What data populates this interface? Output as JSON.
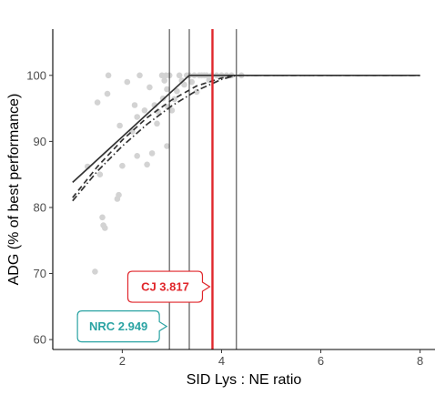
{
  "chart_data": {
    "type": "scatter",
    "title": "",
    "xlabel": "SID Lys : NE ratio",
    "ylabel": "ADG (% of best performance)",
    "xlim": [
      0.6,
      8.3
    ],
    "ylim": [
      58.5,
      107
    ],
    "x_ticks": [
      2,
      4,
      6,
      8
    ],
    "y_ticks": [
      60,
      70,
      80,
      90,
      100
    ],
    "grid": false,
    "colors": {
      "points": "#d3d3d3",
      "lines": "#333333",
      "cj": "#e0262b",
      "nrc": "#2aa3a3",
      "vlines": "#222222"
    },
    "points": [
      [
        1.3,
        86.2
      ],
      [
        1.45,
        70.3
      ],
      [
        1.5,
        95.9
      ],
      [
        1.55,
        85.0
      ],
      [
        1.6,
        78.5
      ],
      [
        1.62,
        77.3
      ],
      [
        1.65,
        76.9
      ],
      [
        1.7,
        97.2
      ],
      [
        1.72,
        100.0
      ],
      [
        1.9,
        81.3
      ],
      [
        1.93,
        81.9
      ],
      [
        1.95,
        92.4
      ],
      [
        2.0,
        86.3
      ],
      [
        2.1,
        99.0
      ],
      [
        2.2,
        91.5
      ],
      [
        2.25,
        95.5
      ],
      [
        2.3,
        87.8
      ],
      [
        2.3,
        93.7
      ],
      [
        2.35,
        100.0
      ],
      [
        2.45,
        94.7
      ],
      [
        2.5,
        86.5
      ],
      [
        2.55,
        98.2
      ],
      [
        2.6,
        88.2
      ],
      [
        2.65,
        95.5
      ],
      [
        2.7,
        92.7
      ],
      [
        2.72,
        94.5
      ],
      [
        2.8,
        100.0
      ],
      [
        2.82,
        96.5
      ],
      [
        2.85,
        99.2
      ],
      [
        2.88,
        100.0
      ],
      [
        2.9,
        89.3
      ],
      [
        2.9,
        97.9
      ],
      [
        2.92,
        95.2
      ],
      [
        2.95,
        100.0
      ],
      [
        3.0,
        94.7
      ],
      [
        3.05,
        96.4
      ],
      [
        3.1,
        97.6
      ],
      [
        3.15,
        100.0
      ],
      [
        3.2,
        99.2
      ],
      [
        3.25,
        98.6
      ],
      [
        3.3,
        100.0
      ],
      [
        3.35,
        100.0
      ],
      [
        3.4,
        99.0
      ],
      [
        3.45,
        100.0
      ],
      [
        3.5,
        97.5
      ],
      [
        3.55,
        100.0
      ],
      [
        3.6,
        100.0
      ],
      [
        3.65,
        100.0
      ],
      [
        3.7,
        100.0
      ],
      [
        3.75,
        99.3
      ],
      [
        3.8,
        100.0
      ],
      [
        3.9,
        100.0
      ],
      [
        4.0,
        100.0
      ],
      [
        4.1,
        100.0
      ],
      [
        4.2,
        100.0
      ],
      [
        4.4,
        100.0
      ]
    ],
    "series": [
      {
        "style": "solid",
        "x": [
          1.0,
          3.35,
          8.0
        ],
        "y": [
          83.8,
          100.0,
          100.0
        ]
      },
      {
        "style": "dashed",
        "x": [
          1.0,
          1.5,
          2.0,
          2.5,
          3.0,
          3.5,
          4.0,
          4.3,
          5.0,
          6.0,
          7.0,
          8.0
        ],
        "y": [
          81.5,
          86.2,
          90.2,
          93.6,
          96.3,
          98.4,
          99.6,
          100.0,
          100.0,
          100.0,
          100.0,
          100.0
        ]
      },
      {
        "style": "dotdash",
        "x": [
          1.0,
          1.5,
          2.0,
          2.5,
          3.0,
          3.5,
          4.0,
          4.3,
          5.0,
          6.0,
          7.0,
          8.0
        ],
        "y": [
          81.0,
          85.5,
          89.3,
          92.6,
          95.4,
          97.7,
          99.4,
          100.0,
          100.0,
          100.0,
          100.0,
          100.0
        ]
      }
    ],
    "vlines": [
      2.949,
      3.35,
      4.3
    ],
    "highlight_line": {
      "x": 3.817
    },
    "callouts": [
      {
        "label": "CJ 3.817",
        "x": 3.817,
        "y": 68.0,
        "color": "#e0262b"
      },
      {
        "label": "NRC 2.949",
        "x": 2.949,
        "y": 62.0,
        "color": "#2aa3a3"
      }
    ]
  }
}
